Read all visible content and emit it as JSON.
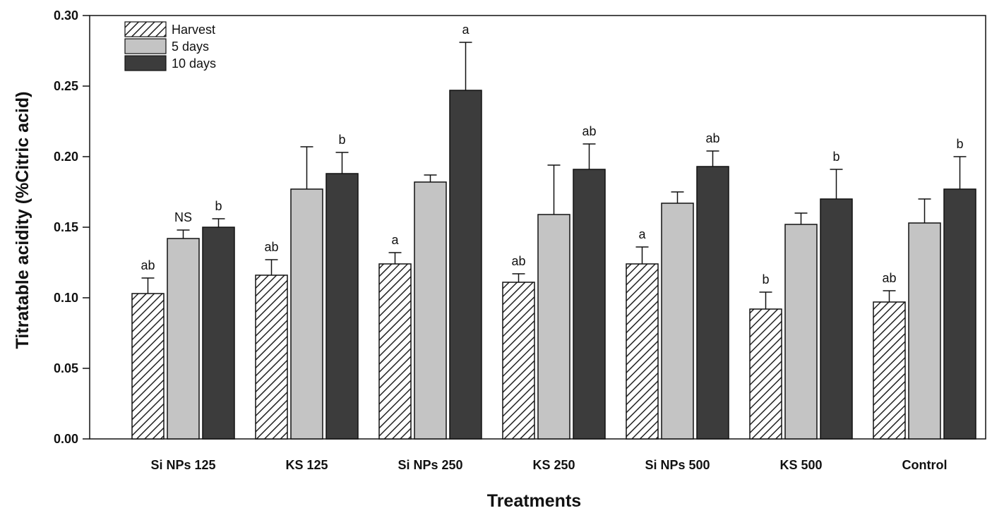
{
  "chart_data": {
    "type": "bar",
    "title": "",
    "xlabel": "Treatments",
    "ylabel": "Titratable acidity (%Citric acid)",
    "ylim": [
      0,
      0.3
    ],
    "yticks": [
      "0.00",
      "0.05",
      "0.10",
      "0.15",
      "0.20",
      "0.25",
      "0.30"
    ],
    "grid": false,
    "legend_position": "top-left",
    "categories": [
      "Si NPs 125",
      "KS 125",
      "Si NPs 250",
      "KS 250",
      "Si NPs 500",
      "KS 500",
      "Control"
    ],
    "series": [
      {
        "name": "Harvest",
        "fill": "hatch",
        "values": [
          0.103,
          0.116,
          0.124,
          0.111,
          0.124,
          0.092,
          0.097
        ],
        "errors": [
          0.011,
          0.011,
          0.008,
          0.006,
          0.012,
          0.012,
          0.008
        ],
        "annotations": [
          "ab",
          "ab",
          "a",
          "ab",
          "a",
          "b",
          "ab"
        ]
      },
      {
        "name": "5 days",
        "fill": "#c4c4c4",
        "values": [
          0.142,
          0.177,
          0.182,
          0.159,
          0.167,
          0.152,
          0.153
        ],
        "errors": [
          0.006,
          0.03,
          0.005,
          0.035,
          0.008,
          0.008,
          0.017
        ],
        "annotations": [
          "NS",
          "",
          "",
          "",
          "",
          "",
          ""
        ]
      },
      {
        "name": "10 days",
        "fill": "#3c3c3c",
        "values": [
          0.15,
          0.188,
          0.247,
          0.191,
          0.193,
          0.17,
          0.177
        ],
        "errors": [
          0.006,
          0.015,
          0.034,
          0.018,
          0.011,
          0.021,
          0.023
        ],
        "annotations": [
          "b",
          "b",
          "a",
          "ab",
          "ab",
          "b",
          "b"
        ]
      }
    ]
  }
}
